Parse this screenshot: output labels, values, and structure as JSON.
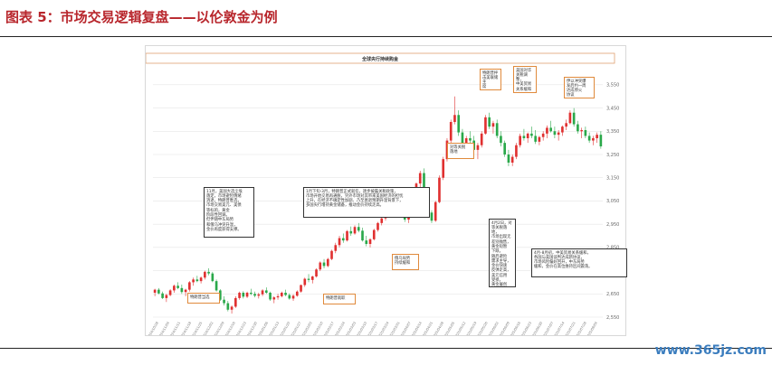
{
  "figure_title": "图表 5：市场交易逻辑复盘——以伦敦金为例",
  "watermark": "www.365jz.com",
  "chart_data": {
    "type": "candlestick",
    "title": "全球央行持续购金",
    "xlabel": "",
    "ylabel": "",
    "ylim": [
      2550,
      3600
    ],
    "yticks": [
      2550,
      2650,
      2750,
      2850,
      2950,
      3050,
      3150,
      3250,
      3350,
      3450,
      3550
    ],
    "ytick_labels": [
      "2,550",
      "2,650",
      "2,750",
      "2,850",
      "2,950",
      "3,050",
      "3,150",
      "3,250",
      "3,350",
      "3,450",
      "3,550"
    ],
    "grid": true,
    "colors": {
      "up": "#e03030",
      "down": "#2aa84a",
      "callout_orange": "#e08a3c",
      "callout_dark": "#333333"
    },
    "x_tick_labels": [
      "2024/10/28",
      "2024/11/04",
      "2024/11/11",
      "2024/11/18",
      "2024/11/25",
      "2024/12/02",
      "2024/12/09",
      "2024/12/16",
      "2024/12/23",
      "2024/12/30",
      "2025/01/06",
      "2025/01/13",
      "2025/01/20",
      "2025/01/27",
      "2025/02/03",
      "2025/02/10",
      "2025/02/17",
      "2025/02/24",
      "2025/03/03",
      "2025/03/10",
      "2025/03/17",
      "2025/03/24",
      "2025/03/31",
      "2025/04/07",
      "2025/04/14",
      "2025/04/21",
      "2025/04/28",
      "2025/05/05",
      "2025/05/12",
      "2025/05/19",
      "2025/05/26",
      "2025/06/02",
      "2025/06/09",
      "2025/06/16",
      "2025/06/23",
      "2025/06/30",
      "2025/07/07",
      "2025/07/14",
      "2025/07/21",
      "2025/07/28",
      "2025/08/04"
    ],
    "ohlc": [
      [
        2655,
        2672,
        2640,
        2668
      ],
      [
        2668,
        2675,
        2648,
        2652
      ],
      [
        2652,
        2660,
        2628,
        2632
      ],
      [
        2632,
        2650,
        2615,
        2645
      ],
      [
        2645,
        2670,
        2640,
        2665
      ],
      [
        2665,
        2690,
        2655,
        2685
      ],
      [
        2685,
        2700,
        2670,
        2675
      ],
      [
        2675,
        2690,
        2650,
        2658
      ],
      [
        2658,
        2672,
        2640,
        2668
      ],
      [
        2668,
        2705,
        2660,
        2700
      ],
      [
        2700,
        2720,
        2685,
        2712
      ],
      [
        2712,
        2728,
        2700,
        2705
      ],
      [
        2705,
        2725,
        2695,
        2720
      ],
      [
        2720,
        2750,
        2712,
        2745
      ],
      [
        2745,
        2760,
        2730,
        2738
      ],
      [
        2738,
        2745,
        2700,
        2705
      ],
      [
        2705,
        2712,
        2660,
        2665
      ],
      [
        2665,
        2670,
        2620,
        2625
      ],
      [
        2625,
        2640,
        2600,
        2610
      ],
      [
        2610,
        2620,
        2575,
        2582
      ],
      [
        2582,
        2600,
        2565,
        2595
      ],
      [
        2595,
        2640,
        2590,
        2632
      ],
      [
        2632,
        2660,
        2625,
        2655
      ],
      [
        2655,
        2662,
        2630,
        2638
      ],
      [
        2638,
        2660,
        2632,
        2655
      ],
      [
        2655,
        2672,
        2645,
        2650
      ],
      [
        2650,
        2660,
        2635,
        2642
      ],
      [
        2642,
        2655,
        2630,
        2648
      ],
      [
        2648,
        2670,
        2640,
        2665
      ],
      [
        2665,
        2678,
        2650,
        2655
      ],
      [
        2655,
        2660,
        2620,
        2626
      ],
      [
        2626,
        2640,
        2610,
        2635
      ],
      [
        2635,
        2650,
        2625,
        2640
      ],
      [
        2640,
        2660,
        2635,
        2655
      ],
      [
        2655,
        2668,
        2640,
        2645
      ],
      [
        2645,
        2652,
        2625,
        2630
      ],
      [
        2630,
        2648,
        2620,
        2642
      ],
      [
        2642,
        2665,
        2638,
        2660
      ],
      [
        2660,
        2690,
        2655,
        2688
      ],
      [
        2688,
        2720,
        2680,
        2715
      ],
      [
        2715,
        2735,
        2700,
        2710
      ],
      [
        2710,
        2728,
        2695,
        2725
      ],
      [
        2725,
        2760,
        2720,
        2755
      ],
      [
        2755,
        2790,
        2748,
        2785
      ],
      [
        2785,
        2800,
        2760,
        2770
      ],
      [
        2770,
        2805,
        2765,
        2800
      ],
      [
        2800,
        2840,
        2795,
        2835
      ],
      [
        2835,
        2870,
        2825,
        2860
      ],
      [
        2860,
        2900,
        2850,
        2890
      ],
      [
        2890,
        2910,
        2870,
        2880
      ],
      [
        2880,
        2925,
        2875,
        2920
      ],
      [
        2920,
        2940,
        2900,
        2910
      ],
      [
        2910,
        2945,
        2905,
        2938
      ],
      [
        2938,
        2955,
        2915,
        2922
      ],
      [
        2922,
        2935,
        2875,
        2880
      ],
      [
        2880,
        2900,
        2855,
        2865
      ],
      [
        2865,
        2890,
        2850,
        2885
      ],
      [
        2885,
        2930,
        2880,
        2925
      ],
      [
        2925,
        2960,
        2918,
        2955
      ],
      [
        2955,
        2980,
        2945,
        2975
      ],
      [
        2975,
        3010,
        2965,
        3005
      ],
      [
        3005,
        3030,
        2995,
        3020
      ],
      [
        3020,
        3055,
        3010,
        3050
      ],
      [
        3050,
        3070,
        3030,
        3040
      ],
      [
        3040,
        3060,
        2995,
        3005
      ],
      [
        3005,
        3020,
        2960,
        2970
      ],
      [
        2970,
        3000,
        2955,
        2995
      ],
      [
        2995,
        3060,
        2990,
        3055
      ],
      [
        3055,
        3130,
        3050,
        3125
      ],
      [
        3125,
        3180,
        3110,
        3170
      ],
      [
        3170,
        3190,
        3090,
        3100
      ],
      [
        3100,
        3110,
        2990,
        3000
      ],
      [
        3000,
        3010,
        2955,
        2965
      ],
      [
        2965,
        3050,
        2960,
        3045
      ],
      [
        3045,
        3160,
        3040,
        3150
      ],
      [
        3150,
        3240,
        3140,
        3230
      ],
      [
        3230,
        3320,
        3220,
        3310
      ],
      [
        3310,
        3400,
        3300,
        3390
      ],
      [
        3390,
        3500,
        3380,
        3420
      ],
      [
        3420,
        3440,
        3330,
        3345
      ],
      [
        3345,
        3360,
        3290,
        3300
      ],
      [
        3300,
        3330,
        3270,
        3320
      ],
      [
        3320,
        3350,
        3300,
        3310
      ],
      [
        3310,
        3330,
        3260,
        3270
      ],
      [
        3270,
        3300,
        3230,
        3290
      ],
      [
        3290,
        3350,
        3280,
        3340
      ],
      [
        3340,
        3420,
        3335,
        3410
      ],
      [
        3410,
        3430,
        3360,
        3370
      ],
      [
        3370,
        3395,
        3340,
        3385
      ],
      [
        3385,
        3400,
        3320,
        3330
      ],
      [
        3330,
        3350,
        3285,
        3300
      ],
      [
        3300,
        3310,
        3240,
        3250
      ],
      [
        3250,
        3270,
        3200,
        3215
      ],
      [
        3215,
        3250,
        3200,
        3240
      ],
      [
        3240,
        3300,
        3230,
        3290
      ],
      [
        3290,
        3340,
        3280,
        3330
      ],
      [
        3330,
        3360,
        3310,
        3320
      ],
      [
        3320,
        3345,
        3300,
        3340
      ],
      [
        3340,
        3370,
        3320,
        3330
      ],
      [
        3330,
        3355,
        3295,
        3305
      ],
      [
        3305,
        3330,
        3290,
        3325
      ],
      [
        3325,
        3350,
        3310,
        3340
      ],
      [
        3340,
        3375,
        3320,
        3365
      ],
      [
        3365,
        3395,
        3345,
        3350
      ],
      [
        3350,
        3370,
        3320,
        3335
      ],
      [
        3335,
        3355,
        3310,
        3345
      ],
      [
        3345,
        3375,
        3330,
        3370
      ],
      [
        3370,
        3400,
        3355,
        3385
      ],
      [
        3385,
        3440,
        3380,
        3430
      ],
      [
        3430,
        3450,
        3370,
        3380
      ],
      [
        3380,
        3395,
        3340,
        3350
      ],
      [
        3350,
        3365,
        3320,
        3355
      ],
      [
        3355,
        3370,
        3320,
        3330
      ],
      [
        3330,
        3345,
        3300,
        3310
      ],
      [
        3310,
        3330,
        3290,
        3320
      ],
      [
        3320,
        3345,
        3300,
        3335
      ],
      [
        3335,
        3350,
        3275,
        3285
      ]
    ],
    "annotations": [
      {
        "id": "taper-uncertainty",
        "box_style": "orange",
        "text": "特朗普当选"
      },
      {
        "id": "yield-spike",
        "box_style": "orange",
        "text": "特朗普就职"
      },
      {
        "id": "tariff-fear",
        "box_style": "orange",
        "text": "俄乌局势\n持续缓和"
      },
      {
        "id": "oct-note",
        "box_style": "dark",
        "text": "11月，美国大选尘埃\n落定，市场避险情绪\n消退，特朗普胜选，\n市场交易美元、美债\n等标的，黄金\n阶段性回调。\n但伴随中东局势\n和俄乌冲突升温，\n金价再度获得支撑。"
      },
      {
        "id": "jan-note",
        "box_style": "dark",
        "text": "1月下旬-3月，特朗普正式就任，逐步披露关税政策，\n市场开始交易再通胀，另外市场对其带来美国经济的担忧\n上升，在经济不确定性加剧、乃至衰退预期升温背景下，\n多国央行增持黄金储备，推动金价持续走高。"
      },
      {
        "id": "tariff-war",
        "box_style": "orange",
        "text": "对等关税\n落地"
      },
      {
        "id": "apr-note",
        "box_style": "dark",
        "text": "4月2日，对\n等关税落地，\n市场出现无\n差别抛售，\n黄金短暂\n下跌。\n随后避险\n需求主导，\n金价快速\n反弹走高，\n美元信用\n受损，\n黄金屡创\n新高。"
      },
      {
        "id": "hawkish-fed",
        "box_style": "orange",
        "text": "特朗普抨\n击美联储主\n席"
      },
      {
        "id": "ceasefire",
        "box_style": "orange",
        "text": "美国对华\n关税调整，\n中美贸易\n关系缓和"
      },
      {
        "id": "may-june",
        "box_style": "orange",
        "text": "伊以冲突爆\n发后约一周\n达成停火\n协议"
      },
      {
        "id": "late-note",
        "box_style": "dark",
        "text": "4月-8月初，中美贸易关系缓和，\n各国与美国谈判达成新协议，\n市场风险偏好回升，中东局势\n缓和，金价在高位维持区间震荡。"
      }
    ]
  }
}
